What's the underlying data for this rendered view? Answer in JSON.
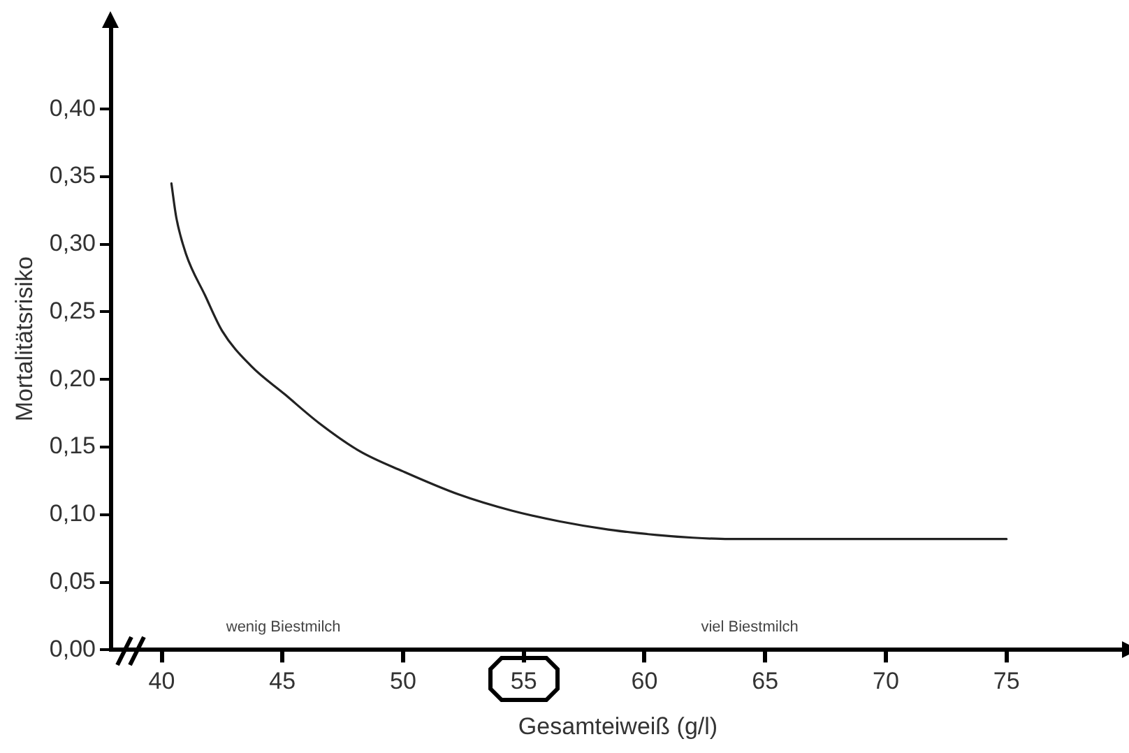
{
  "chart_data": {
    "type": "line",
    "xlabel": "Gesamteiweiß (g/l)",
    "ylabel": "Mortalitätsrisiko",
    "series": [
      {
        "color": "#222222",
        "x": [
          40.4,
          40.6,
          41,
          41.8,
          42.5,
          43.7,
          45.1,
          46.5,
          48.2,
          50,
          52.3,
          54.5,
          56.5,
          58.5,
          60.5,
          62,
          63.5,
          75
        ],
        "values": [
          0.345,
          0.32,
          0.293,
          0.262,
          0.236,
          0.21,
          0.189,
          0.168,
          0.147,
          0.132,
          0.115,
          0.103,
          0.095,
          0.089,
          0.085,
          0.083,
          0.082,
          0.082
        ]
      }
    ],
    "xlim": [
      37.9,
      79.9
    ],
    "xticks": [
      40,
      45,
      50,
      55,
      60,
      65,
      70,
      75
    ],
    "ylim": [
      0,
      0.46
    ],
    "yticks": [
      {
        "value": 0,
        "label": "0,00"
      },
      {
        "value": 0.05,
        "label": "0,05"
      },
      {
        "value": 0.1,
        "label": "0,10"
      },
      {
        "value": 0.15,
        "label": "0,15"
      },
      {
        "value": 0.2,
        "label": "0,20"
      },
      {
        "value": 0.25,
        "label": "0,25"
      },
      {
        "value": 0.3,
        "label": "0,30"
      },
      {
        "value": 0.35,
        "label": "0,35"
      },
      {
        "value": 0.4,
        "label": "0,40"
      }
    ],
    "annotations": [
      "wenig Biestmilch",
      "viel Biestmilch"
    ],
    "grid": false,
    "legend": false,
    "marker": "none",
    "line_style": "solid"
  }
}
